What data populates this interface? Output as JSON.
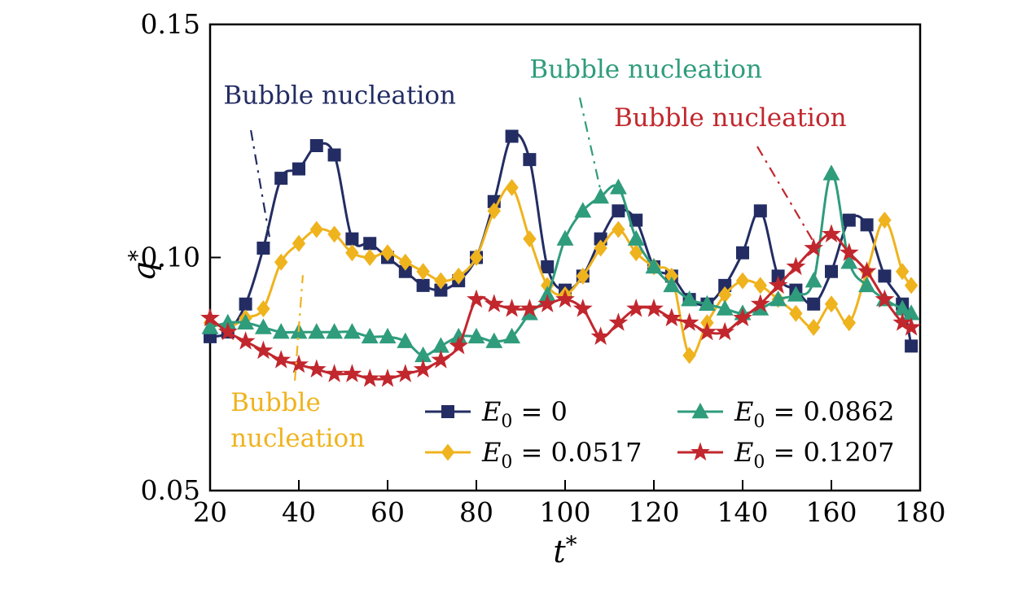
{
  "chart_data": {
    "type": "line",
    "title": "",
    "xlabel": "t",
    "xlabel_sup": "*",
    "ylabel": "q",
    "ylabel_sup": "*",
    "xlim": [
      20,
      180
    ],
    "ylim": [
      0.05,
      0.15
    ],
    "xticks": [
      20,
      40,
      60,
      80,
      100,
      120,
      140,
      160,
      180
    ],
    "yticks": [
      0.05,
      0.1,
      0.15
    ],
    "grid": false,
    "legend_position": "lower center inside plot, 2 columns",
    "frame_color": "#000000",
    "x": [
      20,
      24,
      28,
      32,
      36,
      40,
      44,
      48,
      52,
      56,
      60,
      64,
      68,
      72,
      76,
      80,
      84,
      88,
      92,
      96,
      100,
      104,
      108,
      112,
      116,
      120,
      124,
      128,
      132,
      136,
      140,
      144,
      148,
      152,
      156,
      160,
      164,
      168,
      172,
      176,
      178
    ],
    "series": [
      {
        "name": "E0 = 0",
        "label": {
          "sym": "E",
          "sub": "0",
          "val": "0"
        },
        "color": "#232d63",
        "marker": "square",
        "y": [
          0.083,
          0.084,
          0.09,
          0.102,
          0.117,
          0.119,
          0.124,
          0.122,
          0.104,
          0.103,
          0.1,
          0.097,
          0.094,
          0.093,
          0.095,
          0.1,
          0.112,
          0.126,
          0.121,
          0.098,
          0.093,
          0.096,
          0.104,
          0.11,
          0.108,
          0.098,
          0.096,
          0.091,
          0.09,
          0.094,
          0.101,
          0.11,
          0.096,
          0.093,
          0.09,
          0.097,
          0.108,
          0.107,
          0.096,
          0.09,
          0.081
        ]
      },
      {
        "name": "E0 = 0.0517",
        "label": {
          "sym": "E",
          "sub": "0",
          "val": "0.0517"
        },
        "color": "#efb31e",
        "marker": "diamond",
        "y": [
          0.086,
          0.085,
          0.087,
          0.089,
          0.099,
          0.103,
          0.106,
          0.105,
          0.101,
          0.1,
          0.101,
          0.099,
          0.097,
          0.095,
          0.096,
          0.1,
          0.11,
          0.115,
          0.104,
          0.094,
          0.092,
          0.096,
          0.102,
          0.106,
          0.101,
          0.098,
          0.096,
          0.079,
          0.086,
          0.092,
          0.095,
          0.094,
          0.091,
          0.088,
          0.085,
          0.09,
          0.086,
          0.097,
          0.108,
          0.097,
          0.094
        ]
      },
      {
        "name": "E0 = 0.0862",
        "label": {
          "sym": "E",
          "sub": "0",
          "val": "0.0862"
        },
        "color": "#2f9c7c",
        "marker": "triangle",
        "y": [
          0.085,
          0.086,
          0.086,
          0.085,
          0.084,
          0.084,
          0.084,
          0.084,
          0.084,
          0.083,
          0.083,
          0.082,
          0.079,
          0.081,
          0.083,
          0.083,
          0.082,
          0.083,
          0.088,
          0.092,
          0.104,
          0.11,
          0.113,
          0.115,
          0.104,
          0.098,
          0.094,
          0.091,
          0.09,
          0.089,
          0.088,
          0.089,
          0.091,
          0.092,
          0.095,
          0.118,
          0.099,
          0.094,
          0.091,
          0.089,
          0.088
        ]
      },
      {
        "name": "E0 = 0.1207",
        "label": {
          "sym": "E",
          "sub": "0",
          "val": "0.1207"
        },
        "color": "#c1272d",
        "marker": "star",
        "y": [
          0.087,
          0.084,
          0.082,
          0.08,
          0.078,
          0.077,
          0.076,
          0.075,
          0.075,
          0.074,
          0.074,
          0.075,
          0.076,
          0.078,
          0.081,
          0.091,
          0.09,
          0.089,
          0.089,
          0.09,
          0.091,
          0.089,
          0.083,
          0.086,
          0.089,
          0.089,
          0.087,
          0.086,
          0.084,
          0.084,
          0.087,
          0.09,
          0.094,
          0.098,
          0.102,
          0.105,
          0.101,
          0.097,
          0.091,
          0.086,
          0.085
        ]
      }
    ],
    "annotations": [
      {
        "id": "nucleation-navy",
        "text_lines": [
          "Bubble nucleation"
        ],
        "color": "#232d63",
        "x": 23.0,
        "y": 0.133,
        "anchor": "start",
        "leader": [
          [
            29.2,
            0.1273
          ],
          [
            33.6,
            0.1032
          ]
        ]
      },
      {
        "id": "nucleation-teal",
        "text_lines": [
          "Bubble nucleation"
        ],
        "color": "#2f9c7c",
        "x": 92.0,
        "y": 0.1386,
        "anchor": "start",
        "leader": [
          [
            103.3,
            0.1343
          ],
          [
            107.9,
            0.1147
          ]
        ]
      },
      {
        "id": "nucleation-red",
        "text_lines": [
          "Bubble nucleation"
        ],
        "color": "#c1272d",
        "x": 111.0,
        "y": 0.1282,
        "anchor": "start",
        "leader": [
          [
            143.3,
            0.1238
          ],
          [
            156.1,
            0.1032
          ]
        ]
      },
      {
        "id": "nucleation-yellow",
        "text_lines": [
          "Bubble",
          "nucleation"
        ],
        "color": "#efb31e",
        "x": 24.6,
        "y": 0.0671,
        "anchor": "start",
        "leader": [
          [
            39.1,
            0.0736
          ],
          [
            40.9,
            0.0962
          ]
        ]
      }
    ]
  }
}
